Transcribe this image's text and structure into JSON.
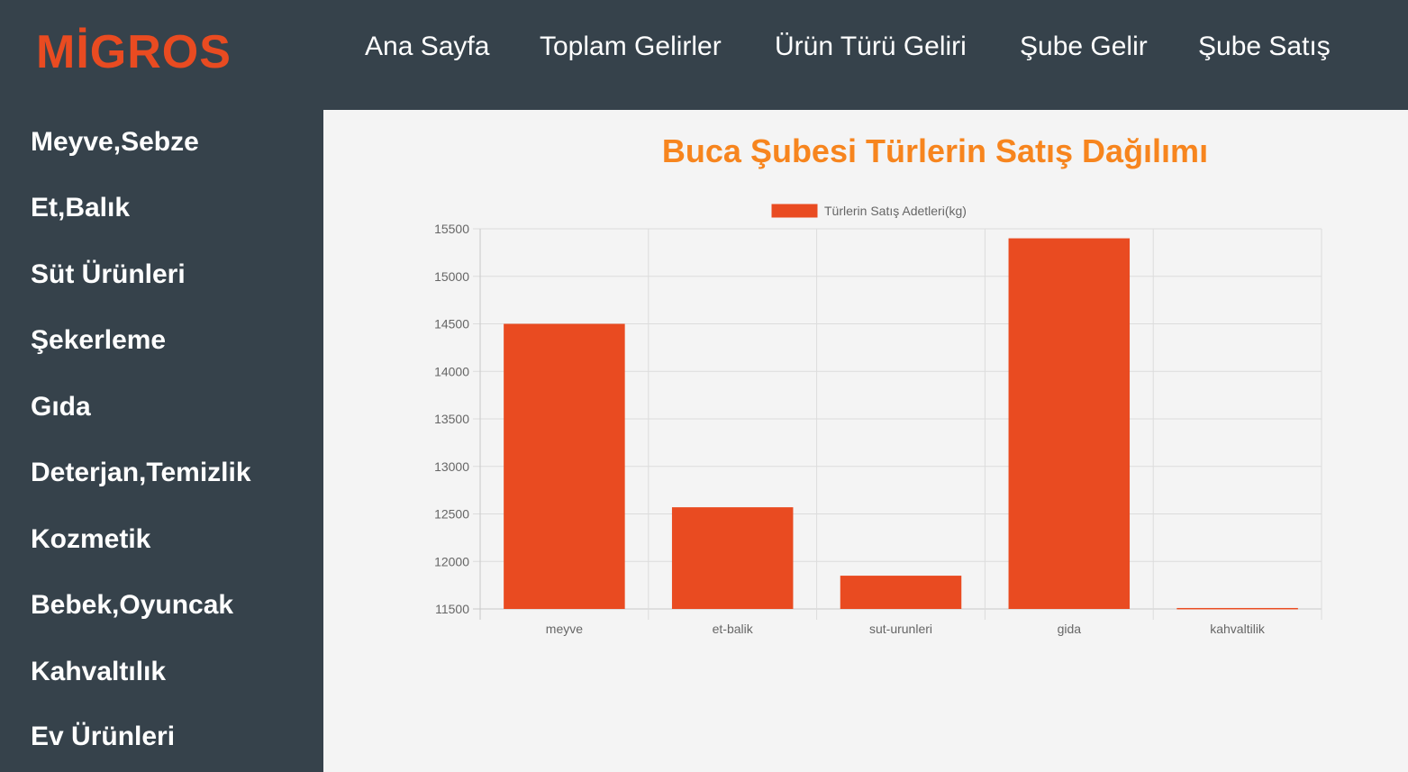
{
  "logo": "MİGROS",
  "nav": {
    "items": [
      {
        "label": "Ana Sayfa"
      },
      {
        "label": "Toplam Gelirler"
      },
      {
        "label": "Ürün Türü Geliri"
      },
      {
        "label": "Şube Gelir"
      },
      {
        "label": "Şube Satış"
      }
    ]
  },
  "sidebar": {
    "items": [
      {
        "label": "Meyve,Sebze"
      },
      {
        "label": "Et,Balık"
      },
      {
        "label": "Süt Ürünleri"
      },
      {
        "label": "Şekerleme"
      },
      {
        "label": "Gıda"
      },
      {
        "label": "Deterjan,Temizlik"
      },
      {
        "label": "Kozmetik"
      },
      {
        "label": "Bebek,Oyuncak"
      },
      {
        "label": "Kahvaltılık"
      },
      {
        "label": "Ev Ürünleri"
      }
    ]
  },
  "colors": {
    "brand": "#e94b21",
    "title": "#f7851e",
    "bar": "#e94b21"
  },
  "chart_data": {
    "type": "bar",
    "title": "Buca Şubesi Türlerin Satış Dağılımı",
    "categories": [
      "meyve",
      "et-balik",
      "sut-urunleri",
      "gida",
      "kahvaltilik"
    ],
    "series": [
      {
        "name": "Türlerin Satış Adetleri(kg)",
        "values": [
          14500,
          12570,
          11850,
          15400,
          11510
        ]
      }
    ],
    "ylim": [
      11500,
      15500
    ],
    "yticks": [
      15500,
      15000,
      14500,
      14000,
      13500,
      13000,
      12500,
      12000,
      11500
    ],
    "grid": true,
    "legend": "top-center"
  }
}
